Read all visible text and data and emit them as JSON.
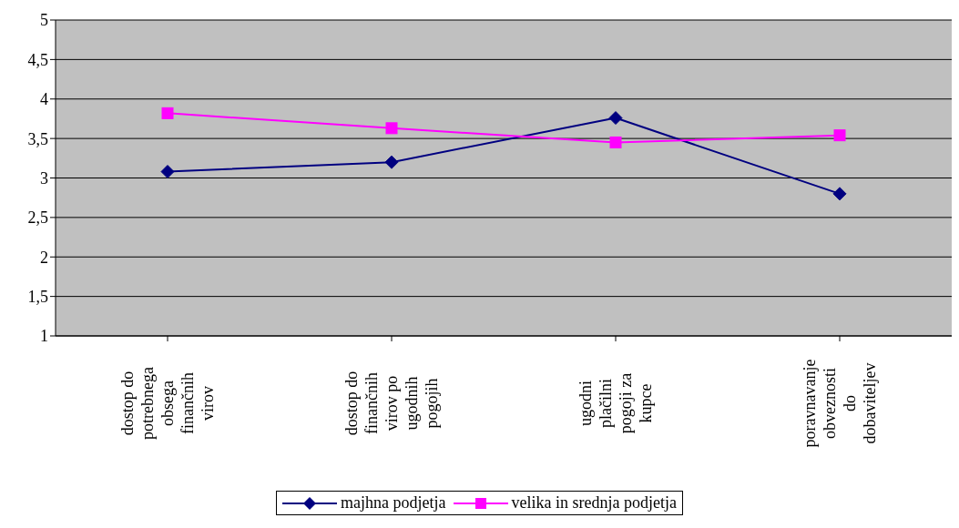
{
  "chart_data": {
    "type": "line",
    "categories": [
      "dostop do potrebnega obsega finančnih virov",
      "dostop do finančnih virov po ugodnih pogojih",
      "ugodni plačilni pogoji za kupce",
      "poravnavanje obveznosti do dobaviteljev"
    ],
    "series": [
      {
        "name": "majhna podjetja",
        "color": "#000080",
        "marker": "diamond",
        "values": [
          3.08,
          3.2,
          3.76,
          2.8
        ]
      },
      {
        "name": "velika in srednja podjetja",
        "color": "#ff00ff",
        "marker": "square",
        "values": [
          3.82,
          3.63,
          3.45,
          3.54
        ]
      }
    ],
    "ylim": [
      1,
      5
    ],
    "yticks": [
      1,
      {
        "value": 1.5,
        "label": "1,5"
      },
      2,
      {
        "value": 2.5,
        "label": "2,5"
      },
      3,
      {
        "value": 3.5,
        "label": "3,5"
      },
      4,
      {
        "value": 4.5,
        "label": "4,5"
      },
      5
    ],
    "grid": "y",
    "legend": "bottom",
    "line_style": "solid"
  }
}
